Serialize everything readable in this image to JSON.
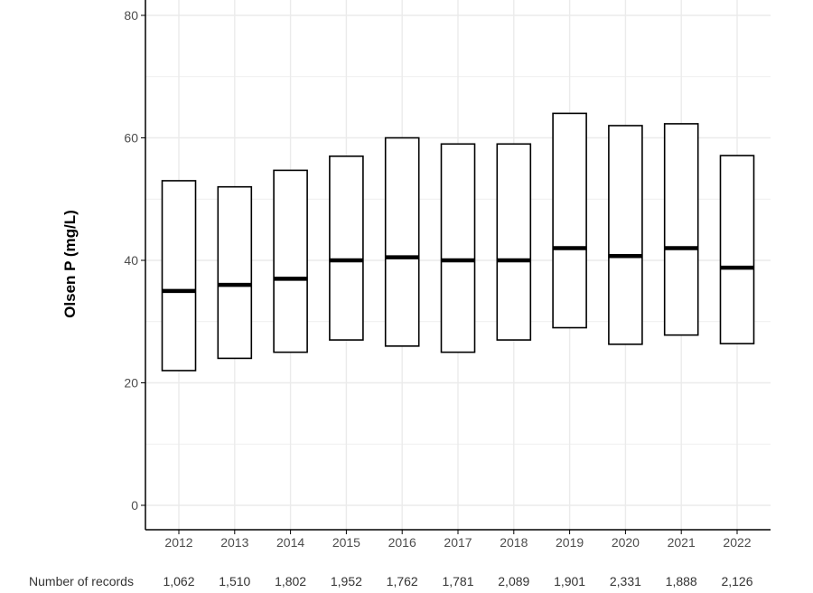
{
  "chart_data": {
    "type": "box",
    "title": "",
    "xlabel": "",
    "ylabel": "Olsen P (mg/L)",
    "ylim": [
      -4,
      83
    ],
    "yticks": [
      0,
      20,
      40,
      60,
      80
    ],
    "grid": true,
    "categories": [
      "2012",
      "2013",
      "2014",
      "2015",
      "2016",
      "2017",
      "2018",
      "2019",
      "2020",
      "2021",
      "2022"
    ],
    "boxes": [
      {
        "q1": 22,
        "median": 35,
        "q3": 53
      },
      {
        "q1": 24,
        "median": 36,
        "q3": 52
      },
      {
        "q1": 25,
        "median": 37,
        "q3": 54.7
      },
      {
        "q1": 27,
        "median": 40,
        "q3": 57
      },
      {
        "q1": 26,
        "median": 40.5,
        "q3": 60
      },
      {
        "q1": 25,
        "median": 40,
        "q3": 59
      },
      {
        "q1": 27,
        "median": 40,
        "q3": 59
      },
      {
        "q1": 29,
        "median": 42,
        "q3": 64
      },
      {
        "q1": 26.3,
        "median": 40.7,
        "q3": 62
      },
      {
        "q1": 27.8,
        "median": 42,
        "q3": 62.3
      },
      {
        "q1": 26.4,
        "median": 38.8,
        "q3": 57.1
      }
    ],
    "counts_label": "Number of records",
    "counts": [
      "1,062",
      "1,510",
      "1,802",
      "1,952",
      "1,762",
      "1,781",
      "2,089",
      "1,901",
      "2,331",
      "1,888",
      "2,126"
    ],
    "colors": {
      "box_stroke": "#000000",
      "box_fill": "#ffffff",
      "grid": "#ebebeb",
      "axis": "#000000",
      "tick_text": "#4d4d4d"
    }
  }
}
